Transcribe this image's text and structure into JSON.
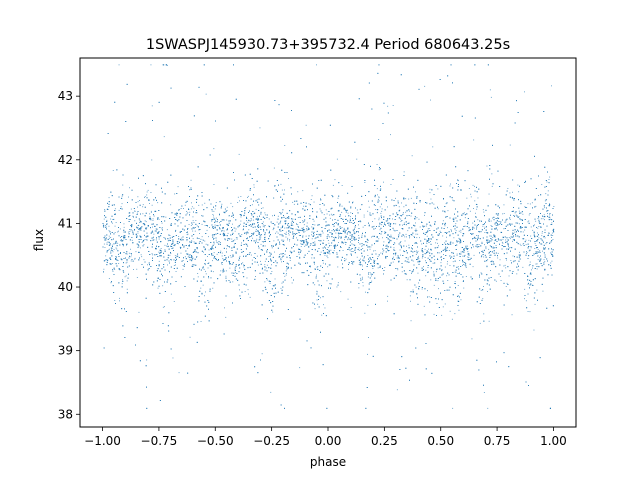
{
  "chart_data": {
    "type": "scatter",
    "title": "1SWASPJ145930.73+395732.4 Period 680643.25s",
    "xlabel": "phase",
    "ylabel": "flux",
    "xlim": [
      -1.1,
      1.1
    ],
    "ylim": [
      37.8,
      43.6
    ],
    "xticks": [
      -1.0,
      -0.75,
      -0.5,
      -0.25,
      0.0,
      0.25,
      0.5,
      0.75,
      1.0
    ],
    "xtick_labels": [
      "−1.00",
      "−0.75",
      "−0.50",
      "−0.25",
      "0.00",
      "0.25",
      "0.50",
      "0.75",
      "1.00"
    ],
    "yticks": [
      38,
      39,
      40,
      41,
      42,
      43
    ],
    "ytick_labels": [
      "38",
      "39",
      "40",
      "41",
      "42",
      "43"
    ],
    "grid": false,
    "legend": "none",
    "marker_color": "#1f77b4",
    "series": [
      {
        "description_points": "dense band of points sampled across phase -1.0 to 1.0",
        "x_range": [
          -1.0,
          1.0
        ],
        "y_median": 40.8,
        "y_core_range": [
          40.1,
          41.5
        ],
        "y_full_range": [
          38.1,
          43.5
        ],
        "dips_at_phase": [
          -0.92,
          -0.72,
          -0.55,
          -0.42,
          -0.25,
          -0.05,
          0.17,
          0.4,
          0.48,
          0.58,
          0.7,
          0.9
        ],
        "peaks_at_phase": [
          -0.8,
          -0.6,
          -0.35,
          -0.2,
          0.0,
          0.22,
          0.33,
          0.55,
          0.65,
          0.8,
          0.97
        ]
      }
    ]
  }
}
